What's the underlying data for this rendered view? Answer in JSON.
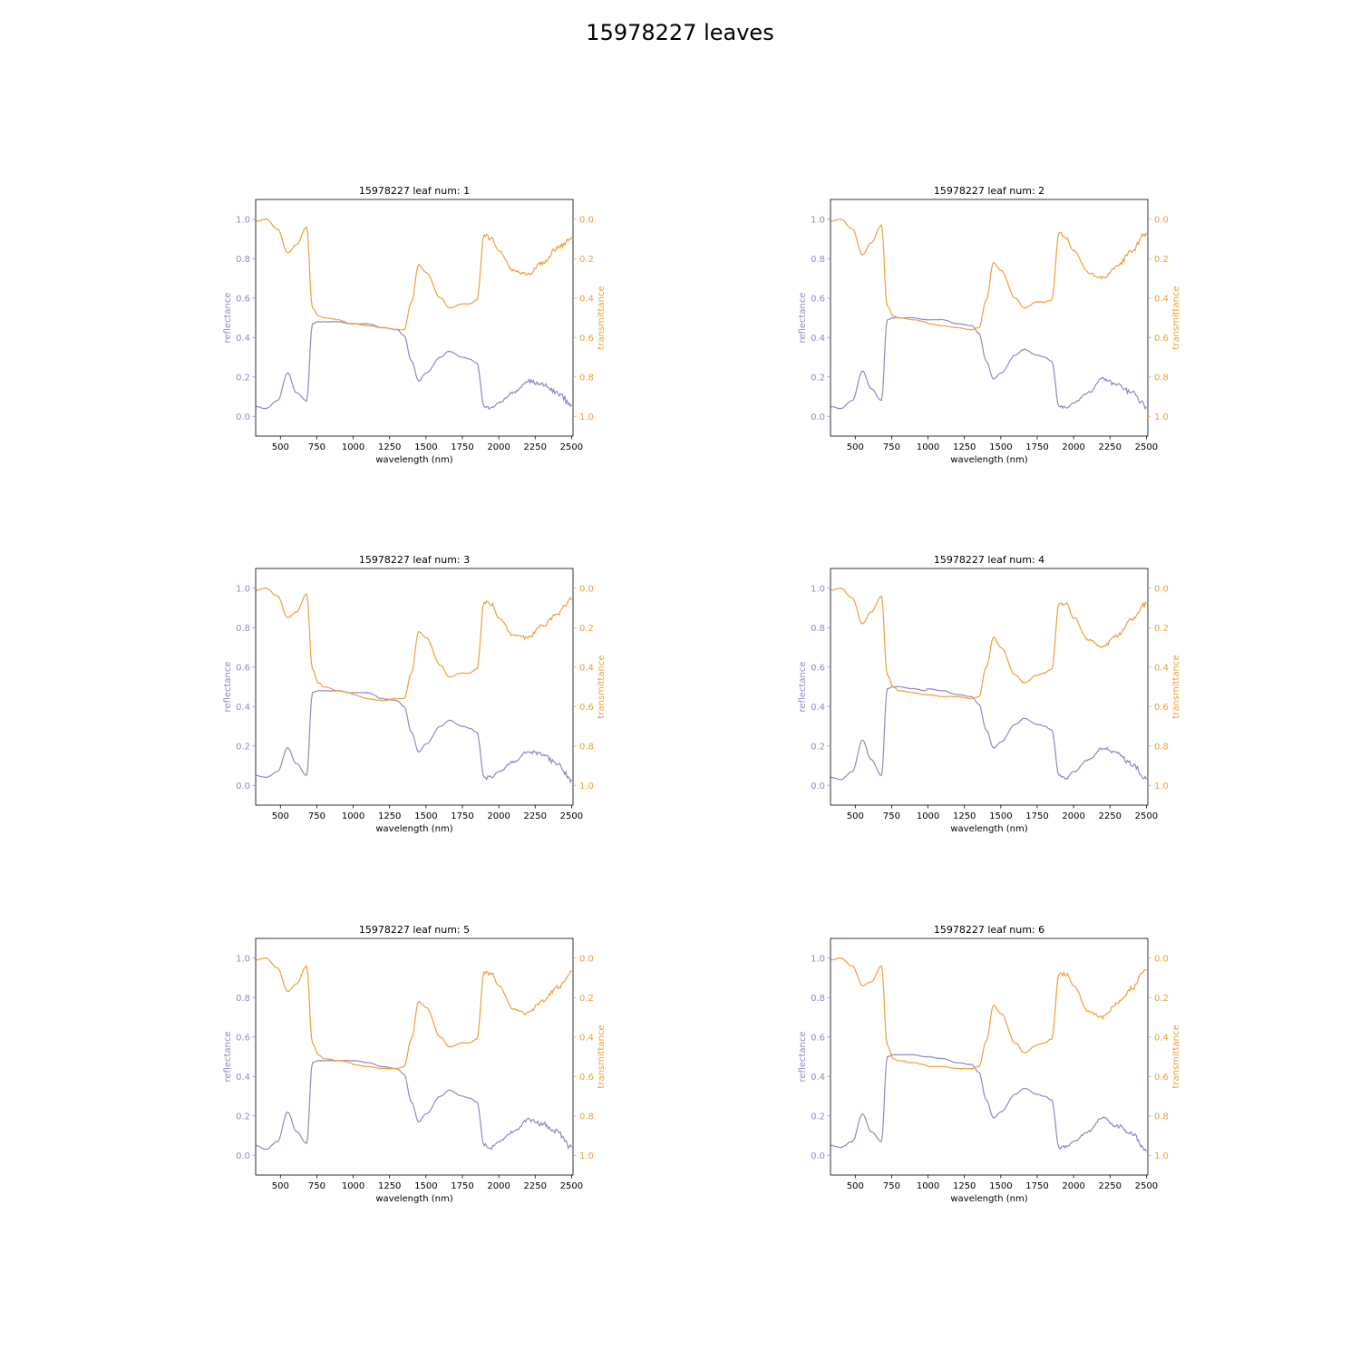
{
  "figure_title": "15978227 leaves",
  "colors": {
    "reflectance": "#8f8ac0",
    "transmittance": "#ef9f3c",
    "axes": "#000000"
  },
  "chart_data": [
    {
      "type": "line",
      "title": "15978227 leaf num: 1",
      "xlabel": "wavelength (nm)",
      "ylabel_left": "reflectance",
      "ylabel_right": "transmittance",
      "xlim": [
        330,
        2510
      ],
      "ylim_left": [
        -0.1,
        1.1
      ],
      "ylim_right": [
        1.1,
        -0.1
      ],
      "xticks": [
        500,
        750,
        1000,
        1250,
        1500,
        1750,
        2000,
        2250,
        2500
      ],
      "yticks_left": [
        0.0,
        0.2,
        0.4,
        0.6,
        0.8,
        1.0
      ],
      "yticks_right": [
        0.0,
        0.2,
        0.4,
        0.6,
        0.8,
        1.0
      ],
      "series": [
        {
          "axis": "left",
          "x": [
            330,
            400,
            480,
            550,
            610,
            680,
            720,
            760,
            800,
            900,
            980,
            1000,
            1100,
            1200,
            1300,
            1350,
            1400,
            1450,
            1500,
            1600,
            1660,
            1750,
            1800,
            1850,
            1900,
            1950,
            2000,
            2100,
            2200,
            2300,
            2400,
            2500
          ],
          "values": [
            0.05,
            0.04,
            0.08,
            0.22,
            0.12,
            0.08,
            0.47,
            0.48,
            0.48,
            0.48,
            0.47,
            0.47,
            0.47,
            0.45,
            0.44,
            0.41,
            0.28,
            0.18,
            0.22,
            0.3,
            0.33,
            0.3,
            0.29,
            0.27,
            0.05,
            0.04,
            0.07,
            0.12,
            0.18,
            0.16,
            0.12,
            0.06
          ]
        },
        {
          "axis": "right",
          "x": [
            330,
            400,
            480,
            550,
            610,
            680,
            720,
            760,
            800,
            900,
            980,
            1000,
            1100,
            1200,
            1300,
            1350,
            1400,
            1450,
            1500,
            1600,
            1660,
            1750,
            1800,
            1850,
            1900,
            1950,
            2000,
            2100,
            2200,
            2300,
            2400,
            2500
          ],
          "values": [
            0.01,
            0.0,
            0.05,
            0.17,
            0.13,
            0.04,
            0.45,
            0.49,
            0.5,
            0.51,
            0.53,
            0.53,
            0.54,
            0.55,
            0.56,
            0.56,
            0.42,
            0.23,
            0.27,
            0.4,
            0.45,
            0.43,
            0.43,
            0.41,
            0.08,
            0.1,
            0.16,
            0.26,
            0.28,
            0.22,
            0.15,
            0.09
          ]
        }
      ]
    },
    {
      "type": "line",
      "title": "15978227 leaf num: 2",
      "xlabel": "wavelength (nm)",
      "ylabel_left": "reflectance",
      "ylabel_right": "transmittance",
      "xlim": [
        330,
        2510
      ],
      "ylim_left": [
        -0.1,
        1.1
      ],
      "ylim_right": [
        1.1,
        -0.1
      ],
      "xticks": [
        500,
        750,
        1000,
        1250,
        1500,
        1750,
        2000,
        2250,
        2500
      ],
      "yticks_left": [
        0.0,
        0.2,
        0.4,
        0.6,
        0.8,
        1.0
      ],
      "yticks_right": [
        0.0,
        0.2,
        0.4,
        0.6,
        0.8,
        1.0
      ],
      "series": [
        {
          "axis": "left",
          "x": [
            330,
            400,
            480,
            550,
            610,
            680,
            720,
            760,
            800,
            900,
            980,
            1000,
            1100,
            1200,
            1300,
            1350,
            1400,
            1450,
            1500,
            1600,
            1660,
            1750,
            1800,
            1850,
            1900,
            1950,
            2000,
            2100,
            2200,
            2300,
            2400,
            2500
          ],
          "values": [
            0.05,
            0.04,
            0.08,
            0.23,
            0.14,
            0.08,
            0.49,
            0.5,
            0.5,
            0.5,
            0.49,
            0.49,
            0.49,
            0.47,
            0.46,
            0.42,
            0.28,
            0.19,
            0.22,
            0.31,
            0.34,
            0.31,
            0.3,
            0.28,
            0.05,
            0.04,
            0.07,
            0.12,
            0.19,
            0.16,
            0.12,
            0.05
          ]
        },
        {
          "axis": "right",
          "x": [
            330,
            400,
            480,
            550,
            610,
            680,
            720,
            760,
            800,
            900,
            980,
            1000,
            1100,
            1200,
            1300,
            1350,
            1400,
            1450,
            1500,
            1600,
            1660,
            1750,
            1800,
            1850,
            1900,
            1950,
            2000,
            2100,
            2200,
            2300,
            2400,
            2500
          ],
          "values": [
            0.01,
            0.0,
            0.05,
            0.18,
            0.12,
            0.03,
            0.44,
            0.49,
            0.5,
            0.51,
            0.52,
            0.53,
            0.54,
            0.55,
            0.56,
            0.55,
            0.41,
            0.22,
            0.26,
            0.4,
            0.45,
            0.42,
            0.42,
            0.41,
            0.07,
            0.1,
            0.16,
            0.27,
            0.3,
            0.24,
            0.16,
            0.07
          ]
        }
      ]
    },
    {
      "type": "line",
      "title": "15978227 leaf num: 3",
      "xlabel": "wavelength (nm)",
      "ylabel_left": "reflectance",
      "ylabel_right": "transmittance",
      "xlim": [
        330,
        2510
      ],
      "ylim_left": [
        -0.1,
        1.1
      ],
      "ylim_right": [
        1.1,
        -0.1
      ],
      "xticks": [
        500,
        750,
        1000,
        1250,
        1500,
        1750,
        2000,
        2250,
        2500
      ],
      "yticks_left": [
        0.0,
        0.2,
        0.4,
        0.6,
        0.8,
        1.0
      ],
      "yticks_right": [
        0.0,
        0.2,
        0.4,
        0.6,
        0.8,
        1.0
      ],
      "series": [
        {
          "axis": "left",
          "x": [
            330,
            400,
            480,
            550,
            610,
            680,
            720,
            760,
            800,
            900,
            980,
            1000,
            1100,
            1200,
            1300,
            1350,
            1400,
            1450,
            1500,
            1600,
            1660,
            1750,
            1800,
            1850,
            1900,
            1950,
            2000,
            2100,
            2200,
            2300,
            2400,
            2500
          ],
          "values": [
            0.05,
            0.04,
            0.07,
            0.19,
            0.11,
            0.05,
            0.47,
            0.48,
            0.48,
            0.48,
            0.47,
            0.47,
            0.47,
            0.44,
            0.43,
            0.4,
            0.27,
            0.17,
            0.21,
            0.3,
            0.33,
            0.3,
            0.29,
            0.27,
            0.04,
            0.04,
            0.07,
            0.12,
            0.17,
            0.16,
            0.11,
            0.03
          ]
        },
        {
          "axis": "right",
          "x": [
            330,
            400,
            480,
            550,
            610,
            680,
            720,
            760,
            800,
            900,
            980,
            1000,
            1100,
            1200,
            1300,
            1350,
            1400,
            1450,
            1500,
            1600,
            1660,
            1750,
            1800,
            1850,
            1900,
            1950,
            2000,
            2100,
            2200,
            2300,
            2400,
            2500
          ],
          "values": [
            0.01,
            0.0,
            0.04,
            0.15,
            0.12,
            0.03,
            0.41,
            0.48,
            0.5,
            0.52,
            0.53,
            0.54,
            0.56,
            0.57,
            0.56,
            0.56,
            0.43,
            0.22,
            0.25,
            0.39,
            0.45,
            0.43,
            0.43,
            0.41,
            0.07,
            0.08,
            0.15,
            0.24,
            0.25,
            0.19,
            0.13,
            0.06
          ]
        }
      ]
    },
    {
      "type": "line",
      "title": "15978227 leaf num: 4",
      "xlabel": "wavelength (nm)",
      "ylabel_left": "reflectance",
      "ylabel_right": "transmittance",
      "xlim": [
        330,
        2510
      ],
      "ylim_left": [
        -0.1,
        1.1
      ],
      "ylim_right": [
        1.1,
        -0.1
      ],
      "xticks": [
        500,
        750,
        1000,
        1250,
        1500,
        1750,
        2000,
        2250,
        2500
      ],
      "yticks_left": [
        0.0,
        0.2,
        0.4,
        0.6,
        0.8,
        1.0
      ],
      "yticks_right": [
        0.0,
        0.2,
        0.4,
        0.6,
        0.8,
        1.0
      ],
      "series": [
        {
          "axis": "left",
          "x": [
            330,
            400,
            480,
            550,
            610,
            680,
            720,
            760,
            800,
            900,
            980,
            1000,
            1100,
            1200,
            1300,
            1350,
            1400,
            1450,
            1500,
            1600,
            1660,
            1750,
            1800,
            1850,
            1900,
            1950,
            2000,
            2100,
            2200,
            2300,
            2400,
            2500
          ],
          "values": [
            0.04,
            0.03,
            0.07,
            0.23,
            0.13,
            0.05,
            0.49,
            0.5,
            0.5,
            0.49,
            0.48,
            0.49,
            0.48,
            0.46,
            0.45,
            0.41,
            0.28,
            0.19,
            0.22,
            0.31,
            0.34,
            0.31,
            0.3,
            0.28,
            0.05,
            0.04,
            0.07,
            0.13,
            0.19,
            0.16,
            0.11,
            0.03
          ]
        },
        {
          "axis": "right",
          "x": [
            330,
            400,
            480,
            550,
            610,
            680,
            720,
            760,
            800,
            900,
            980,
            1000,
            1100,
            1200,
            1300,
            1350,
            1400,
            1450,
            1500,
            1600,
            1660,
            1750,
            1800,
            1850,
            1900,
            1950,
            2000,
            2100,
            2200,
            2300,
            2400,
            2500
          ],
          "values": [
            0.01,
            0.0,
            0.05,
            0.18,
            0.12,
            0.04,
            0.44,
            0.5,
            0.52,
            0.53,
            0.54,
            0.54,
            0.55,
            0.55,
            0.56,
            0.55,
            0.4,
            0.25,
            0.3,
            0.44,
            0.48,
            0.44,
            0.43,
            0.41,
            0.08,
            0.08,
            0.15,
            0.26,
            0.3,
            0.24,
            0.16,
            0.08
          ]
        }
      ]
    },
    {
      "type": "line",
      "title": "15978227 leaf num: 5",
      "xlabel": "wavelength (nm)",
      "ylabel_left": "reflectance",
      "ylabel_right": "transmittance",
      "xlim": [
        330,
        2510
      ],
      "ylim_left": [
        -0.1,
        1.1
      ],
      "ylim_right": [
        1.1,
        -0.1
      ],
      "xticks": [
        500,
        750,
        1000,
        1250,
        1500,
        1750,
        2000,
        2250,
        2500
      ],
      "yticks_left": [
        0.0,
        0.2,
        0.4,
        0.6,
        0.8,
        1.0
      ],
      "yticks_right": [
        0.0,
        0.2,
        0.4,
        0.6,
        0.8,
        1.0
      ],
      "series": [
        {
          "axis": "left",
          "x": [
            330,
            400,
            480,
            550,
            610,
            680,
            720,
            760,
            800,
            900,
            980,
            1000,
            1100,
            1200,
            1300,
            1350,
            1400,
            1450,
            1500,
            1600,
            1660,
            1750,
            1800,
            1850,
            1900,
            1950,
            2000,
            2100,
            2200,
            2300,
            2400,
            2500
          ],
          "values": [
            0.05,
            0.03,
            0.07,
            0.22,
            0.12,
            0.06,
            0.47,
            0.48,
            0.48,
            0.48,
            0.48,
            0.48,
            0.47,
            0.45,
            0.44,
            0.41,
            0.27,
            0.17,
            0.21,
            0.3,
            0.33,
            0.3,
            0.29,
            0.27,
            0.05,
            0.04,
            0.07,
            0.12,
            0.18,
            0.16,
            0.12,
            0.04
          ]
        },
        {
          "axis": "right",
          "x": [
            330,
            400,
            480,
            550,
            610,
            680,
            720,
            760,
            800,
            900,
            980,
            1000,
            1100,
            1200,
            1300,
            1350,
            1400,
            1450,
            1500,
            1600,
            1660,
            1750,
            1800,
            1850,
            1900,
            1950,
            2000,
            2100,
            2200,
            2300,
            2400,
            2500
          ],
          "values": [
            0.01,
            0.0,
            0.05,
            0.17,
            0.13,
            0.04,
            0.43,
            0.49,
            0.51,
            0.52,
            0.53,
            0.54,
            0.55,
            0.56,
            0.56,
            0.55,
            0.41,
            0.22,
            0.25,
            0.4,
            0.45,
            0.43,
            0.43,
            0.41,
            0.07,
            0.08,
            0.14,
            0.26,
            0.28,
            0.22,
            0.15,
            0.07
          ]
        }
      ]
    },
    {
      "type": "line",
      "title": "15978227 leaf num: 6",
      "xlabel": "wavelength (nm)",
      "ylabel_left": "reflectance",
      "ylabel_right": "transmittance",
      "xlim": [
        330,
        2510
      ],
      "ylim_left": [
        -0.1,
        1.1
      ],
      "ylim_right": [
        1.1,
        -0.1
      ],
      "xticks": [
        500,
        750,
        1000,
        1250,
        1500,
        1750,
        2000,
        2250,
        2500
      ],
      "yticks_left": [
        0.0,
        0.2,
        0.4,
        0.6,
        0.8,
        1.0
      ],
      "yticks_right": [
        0.0,
        0.2,
        0.4,
        0.6,
        0.8,
        1.0
      ],
      "series": [
        {
          "axis": "left",
          "x": [
            330,
            400,
            480,
            550,
            610,
            680,
            720,
            760,
            800,
            900,
            980,
            1000,
            1100,
            1200,
            1300,
            1350,
            1400,
            1450,
            1500,
            1600,
            1660,
            1750,
            1800,
            1850,
            1900,
            1950,
            2000,
            2100,
            2200,
            2300,
            2400,
            2500
          ],
          "values": [
            0.05,
            0.04,
            0.07,
            0.21,
            0.12,
            0.07,
            0.5,
            0.51,
            0.51,
            0.51,
            0.5,
            0.5,
            0.49,
            0.47,
            0.46,
            0.42,
            0.28,
            0.19,
            0.22,
            0.31,
            0.34,
            0.31,
            0.3,
            0.28,
            0.04,
            0.04,
            0.07,
            0.12,
            0.19,
            0.15,
            0.11,
            0.02
          ]
        },
        {
          "axis": "right",
          "x": [
            330,
            400,
            480,
            550,
            610,
            680,
            720,
            760,
            800,
            900,
            980,
            1000,
            1100,
            1200,
            1300,
            1350,
            1400,
            1450,
            1500,
            1600,
            1660,
            1750,
            1800,
            1850,
            1900,
            1950,
            2000,
            2100,
            2200,
            2300,
            2400,
            2500
          ],
          "values": [
            0.01,
            0.0,
            0.04,
            0.14,
            0.12,
            0.04,
            0.44,
            0.51,
            0.52,
            0.53,
            0.54,
            0.55,
            0.55,
            0.56,
            0.56,
            0.55,
            0.42,
            0.24,
            0.28,
            0.43,
            0.48,
            0.44,
            0.43,
            0.41,
            0.08,
            0.08,
            0.14,
            0.27,
            0.3,
            0.23,
            0.15,
            0.06
          ]
        }
      ]
    }
  ]
}
